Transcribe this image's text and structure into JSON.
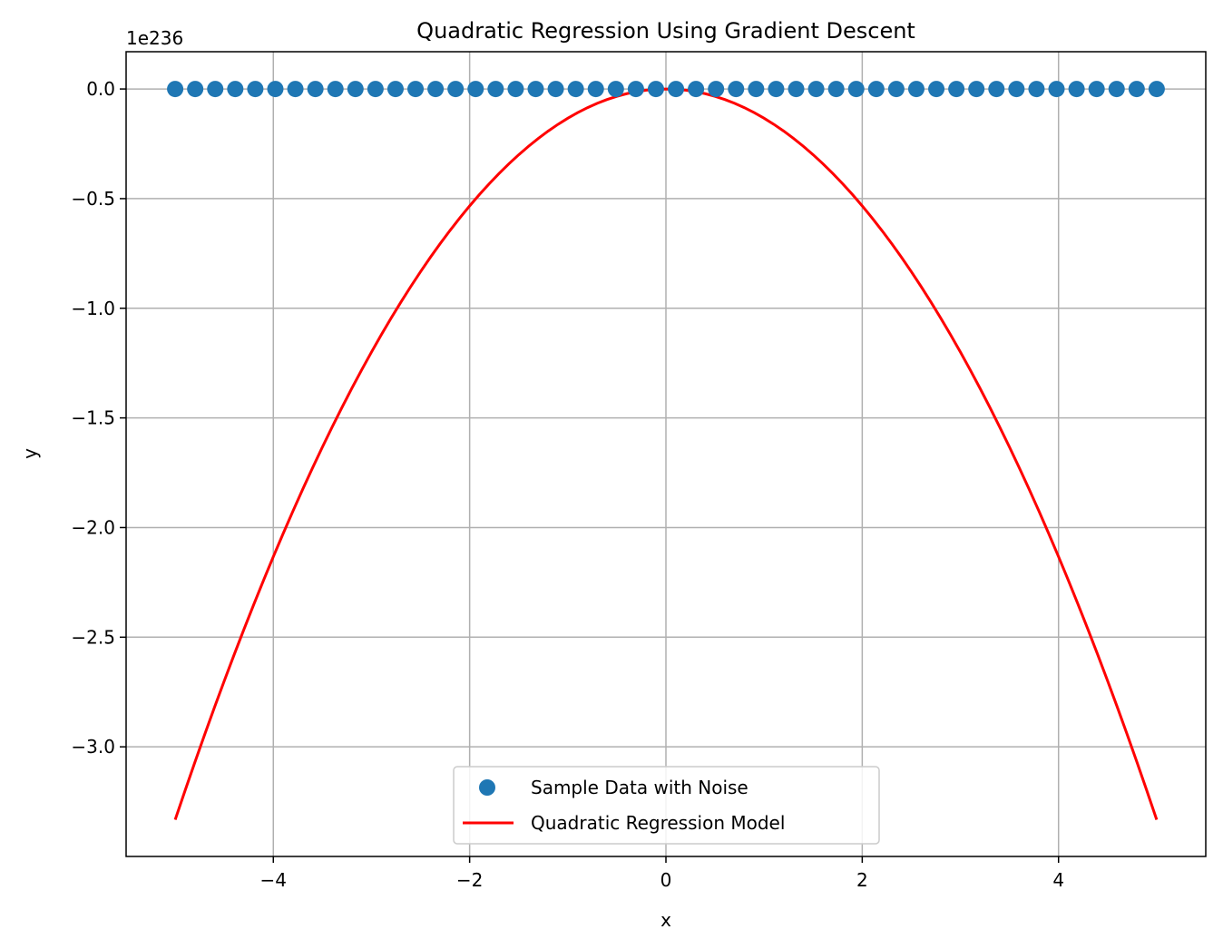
{
  "chart_data": {
    "type": "scatter",
    "title": "Quadratic Regression Using Gradient Descent",
    "xlabel": "x",
    "ylabel": "y",
    "y_scale_label": "1e236",
    "xlim": [
      -5.5,
      5.5
    ],
    "ylim": [
      -3.5,
      0.17
    ],
    "grid": true,
    "legend_position": "lower center",
    "x_ticks": [
      -4,
      -2,
      0,
      2,
      4
    ],
    "x_tick_labels": [
      "−4",
      "−2",
      "0",
      "2",
      "4"
    ],
    "y_ticks": [
      0.0,
      -0.5,
      -1.0,
      -1.5,
      -2.0,
      -2.5,
      -3.0
    ],
    "y_tick_labels": [
      "0.0",
      "−0.5",
      "−1.0",
      "−1.5",
      "−2.0",
      "−2.5",
      "−3.0"
    ],
    "series": [
      {
        "name": "Sample Data with Noise",
        "kind": "scatter",
        "color": "#1f77b4",
        "x_range": [
          -5,
          5
        ],
        "count": 50,
        "y_constant": 0.0
      },
      {
        "name": "Quadratic Regression Model",
        "kind": "line",
        "color": "#ff0000",
        "x_range": [
          -5,
          5
        ],
        "equation": "y = -0.1333 * x^2",
        "coefficient": -0.1333
      }
    ]
  }
}
